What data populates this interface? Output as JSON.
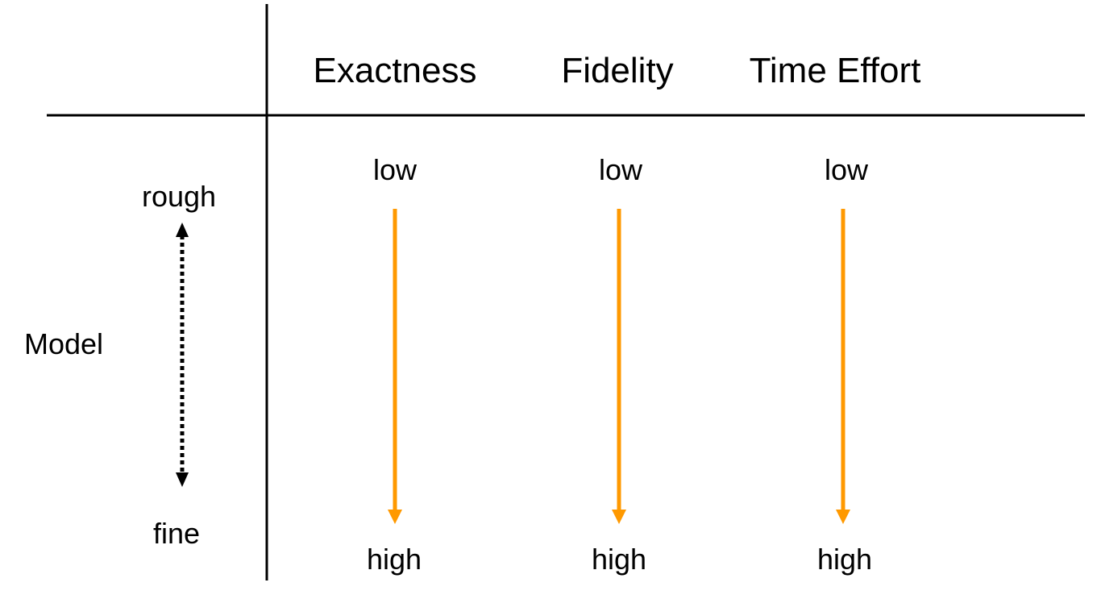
{
  "columns": [
    "Exactness",
    "Fidelity",
    "Time Effort"
  ],
  "row_label": "Model",
  "scale_top": "rough",
  "scale_bottom": "fine",
  "column_values": [
    {
      "top": "low",
      "bottom": "high"
    },
    {
      "top": "low",
      "bottom": "high"
    },
    {
      "top": "low",
      "bottom": "high"
    }
  ],
  "colors": {
    "arrow": "#FF9900",
    "line": "#000000",
    "text": "#000000"
  }
}
